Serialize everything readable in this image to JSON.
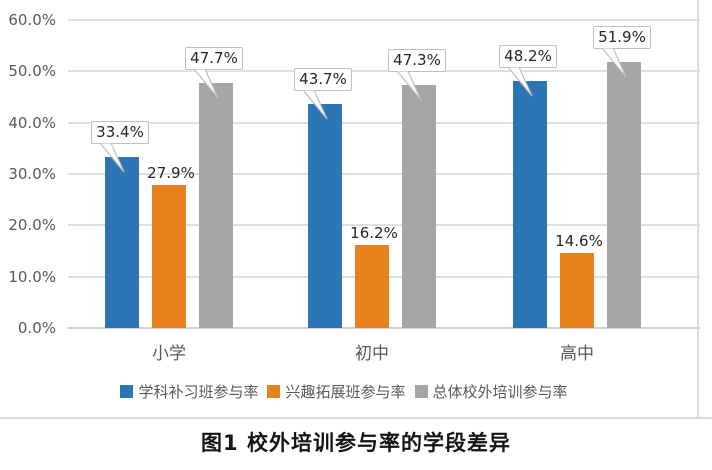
{
  "figure": {
    "caption": "图1 校外培训参与率的学段差异"
  },
  "chart_data": {
    "type": "bar",
    "title": "",
    "xlabel": "",
    "ylabel": "",
    "categories": [
      "小学",
      "初中",
      "高中"
    ],
    "series": [
      {
        "name": "学科补习班参与率",
        "color": "#2E75B6",
        "values": [
          33.4,
          43.7,
          48.2
        ],
        "labels": [
          "33.4%",
          "43.7%",
          "48.2%"
        ],
        "label_style": "callout"
      },
      {
        "name": "兴趣拓展班参与率",
        "color": "#E8811E",
        "values": [
          27.9,
          16.2,
          14.6
        ],
        "labels": [
          "27.9%",
          "16.2%",
          "14.6%"
        ],
        "label_style": "plain"
      },
      {
        "name": "总体校外培训参与率",
        "color": "#A6A6A6",
        "values": [
          47.7,
          47.3,
          51.9
        ],
        "labels": [
          "47.7%",
          "47.3%",
          "51.9%"
        ],
        "label_style": "callout"
      }
    ],
    "ylim": [
      0,
      60
    ],
    "ytick_step": 10,
    "yticks": [
      "0.0%",
      "10.0%",
      "20.0%",
      "30.0%",
      "40.0%",
      "50.0%",
      "60.0%"
    ],
    "grid": true,
    "legend_position": "bottom"
  }
}
